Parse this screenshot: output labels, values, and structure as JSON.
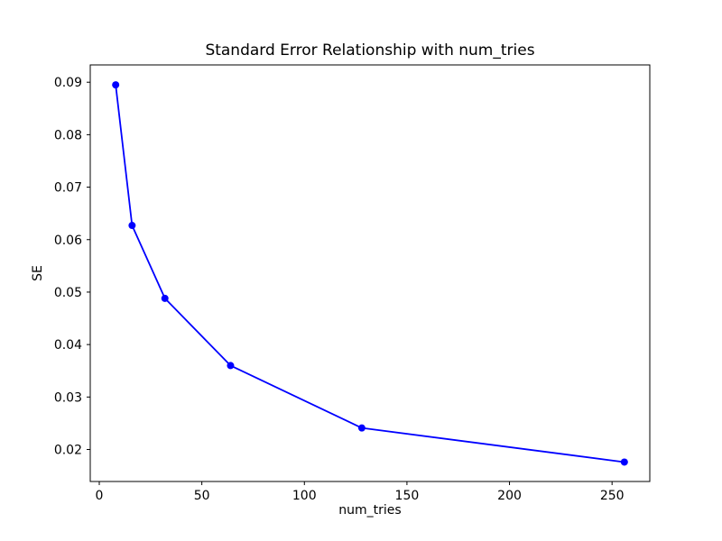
{
  "figure": {
    "background_color": "#ffffff",
    "title": "Standard Error Relationship with num_tries"
  },
  "chart_data": {
    "type": "line",
    "title": "Standard Error Relationship with num_tries",
    "xlabel": "num_tries",
    "ylabel": "SE",
    "series": [
      {
        "name": "SE",
        "x": [
          8,
          16,
          32,
          64,
          128,
          256
        ],
        "y": [
          0.0895,
          0.0627,
          0.0488,
          0.036,
          0.0241,
          0.0176
        ]
      }
    ],
    "x_ticks": [
      0,
      50,
      100,
      150,
      200,
      250
    ],
    "y_ticks": [
      0.02,
      0.03,
      0.04,
      0.05,
      0.06,
      0.07,
      0.08,
      0.09
    ],
    "y_tick_labels": [
      "0.02",
      "0.03",
      "0.04",
      "0.05",
      "0.06",
      "0.07",
      "0.08",
      "0.09"
    ],
    "xlim": [
      -4.4,
      268.4
    ],
    "ylim": [
      0.0139,
      0.0933
    ],
    "grid": false,
    "legend_position": "none",
    "line_color": "#0000ff",
    "marker": "o",
    "marker_color": "#0000ff",
    "axis_color": "#000000",
    "text_color": "#000000"
  }
}
